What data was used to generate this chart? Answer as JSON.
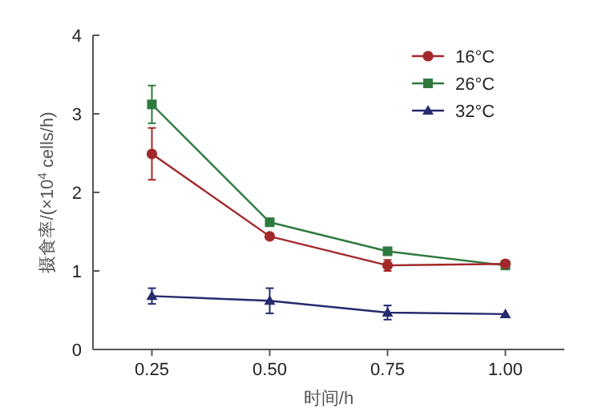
{
  "chart_data": {
    "type": "line",
    "xlabel": "时间/h",
    "ylabel": "摄食率/(×10$^{4}$ cells/h)",
    "x": [
      0.25,
      0.5,
      0.75,
      1.0
    ],
    "xlim": [
      0.125,
      1.125
    ],
    "xticks": [
      {
        "value": 0.25,
        "label": "0.25"
      },
      {
        "value": 0.5,
        "label": "0.50"
      },
      {
        "value": 0.75,
        "label": "0.75"
      },
      {
        "value": 1.0,
        "label": "1.00"
      }
    ],
    "ylim": [
      0,
      4
    ],
    "yticks": [
      0,
      1,
      2,
      3,
      4
    ],
    "legend": "top right",
    "grid": false,
    "series": [
      {
        "name": "16°C",
        "color": "#a3282a",
        "marker": "circle",
        "values": [
          2.49,
          1.44,
          1.07,
          1.09
        ],
        "errors": [
          0.33,
          null,
          0.07,
          0.04
        ]
      },
      {
        "name": "26°C",
        "color": "#2e7a3e",
        "marker": "square",
        "values": [
          3.12,
          1.62,
          1.25,
          1.07
        ],
        "errors": [
          0.24,
          null,
          null,
          null
        ]
      },
      {
        "name": "32°C",
        "color": "#262a6e",
        "marker": "triangle",
        "values": [
          0.68,
          0.62,
          0.47,
          0.45
        ],
        "errors": [
          0.1,
          0.16,
          0.09,
          null
        ]
      }
    ]
  }
}
